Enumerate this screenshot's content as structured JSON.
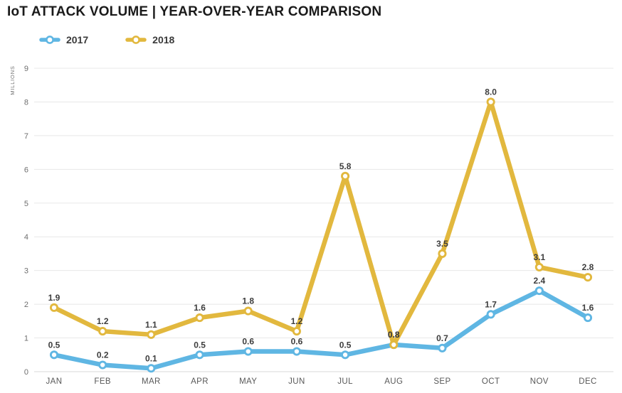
{
  "title": "IoT ATTACK VOLUME | YEAR-OVER-YEAR COMPARISON",
  "chart_data": {
    "type": "line",
    "title": "IoT ATTACK VOLUME | YEAR-OVER-YEAR COMPARISON",
    "categories": [
      "JAN",
      "FEB",
      "MAR",
      "APR",
      "MAY",
      "JUN",
      "JUL",
      "AUG",
      "SEP",
      "OCT",
      "NOV",
      "DEC"
    ],
    "series": [
      {
        "name": "2017",
        "color": "#5FB6E3",
        "values": [
          0.5,
          0.2,
          0.1,
          0.5,
          0.6,
          0.6,
          0.5,
          0.8,
          0.7,
          1.7,
          2.4,
          1.6
        ]
      },
      {
        "name": "2018",
        "color": "#E2B83E",
        "values": [
          1.9,
          1.2,
          1.1,
          1.6,
          1.8,
          1.2,
          5.8,
          0.8,
          3.5,
          8.0,
          3.1,
          2.8
        ]
      }
    ],
    "xlabel": "",
    "ylabel": "MILLIONS",
    "ylim": [
      0,
      9
    ],
    "yticks": [
      0,
      1,
      2,
      3,
      4,
      5,
      6,
      7,
      8,
      9
    ],
    "grid": true,
    "data_labels": true,
    "legend_position": "top-left"
  },
  "colors": {
    "background": "#ffffff",
    "title_text": "#1a1a1a",
    "grid_line": "#e8e8e8",
    "zero_line": "#d9d9d9",
    "axis_text": "#6e6e6e",
    "data_label_text": "#3d3d3d",
    "series_2017": "#5FB6E3",
    "series_2018": "#E2B83E"
  }
}
